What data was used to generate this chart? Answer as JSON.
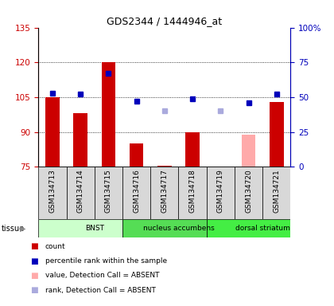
{
  "title": "GDS2344 / 1444946_at",
  "samples": [
    "GSM134713",
    "GSM134714",
    "GSM134715",
    "GSM134716",
    "GSM134717",
    "GSM134718",
    "GSM134719",
    "GSM134720",
    "GSM134721"
  ],
  "count_values": [
    105,
    98,
    120,
    85,
    75.5,
    90,
    75.2,
    89,
    103
  ],
  "count_absent": [
    false,
    false,
    false,
    false,
    false,
    false,
    false,
    true,
    false
  ],
  "rank_values": [
    53,
    52,
    67,
    47,
    40,
    49,
    40,
    46,
    52
  ],
  "rank_absent": [
    false,
    false,
    false,
    false,
    true,
    false,
    true,
    false,
    false
  ],
  "ylim_left": [
    75,
    135
  ],
  "ylim_right": [
    0,
    100
  ],
  "yticks_left": [
    75,
    90,
    105,
    120,
    135
  ],
  "yticks_right": [
    0,
    25,
    50,
    75,
    100
  ],
  "ytick_labels_right": [
    "0",
    "25",
    "50",
    "75",
    "100%"
  ],
  "color_bar_present": "#cc0000",
  "color_bar_absent": "#ffaaaa",
  "color_rank_present": "#0000bb",
  "color_rank_absent": "#aaaadd",
  "tissue_groups": [
    {
      "label": "BNST",
      "start": 0,
      "end": 3,
      "color": "#ccffcc"
    },
    {
      "label": "nucleus accumbens",
      "start": 3,
      "end": 6,
      "color": "#55dd55"
    },
    {
      "label": "dorsal striatum",
      "start": 6,
      "end": 9,
      "color": "#44ee44"
    }
  ],
  "legend_items": [
    {
      "color": "#cc0000",
      "label": "count"
    },
    {
      "color": "#0000bb",
      "label": "percentile rank within the sample"
    },
    {
      "color": "#ffaaaa",
      "label": "value, Detection Call = ABSENT"
    },
    {
      "color": "#aaaadd",
      "label": "rank, Detection Call = ABSENT"
    }
  ]
}
